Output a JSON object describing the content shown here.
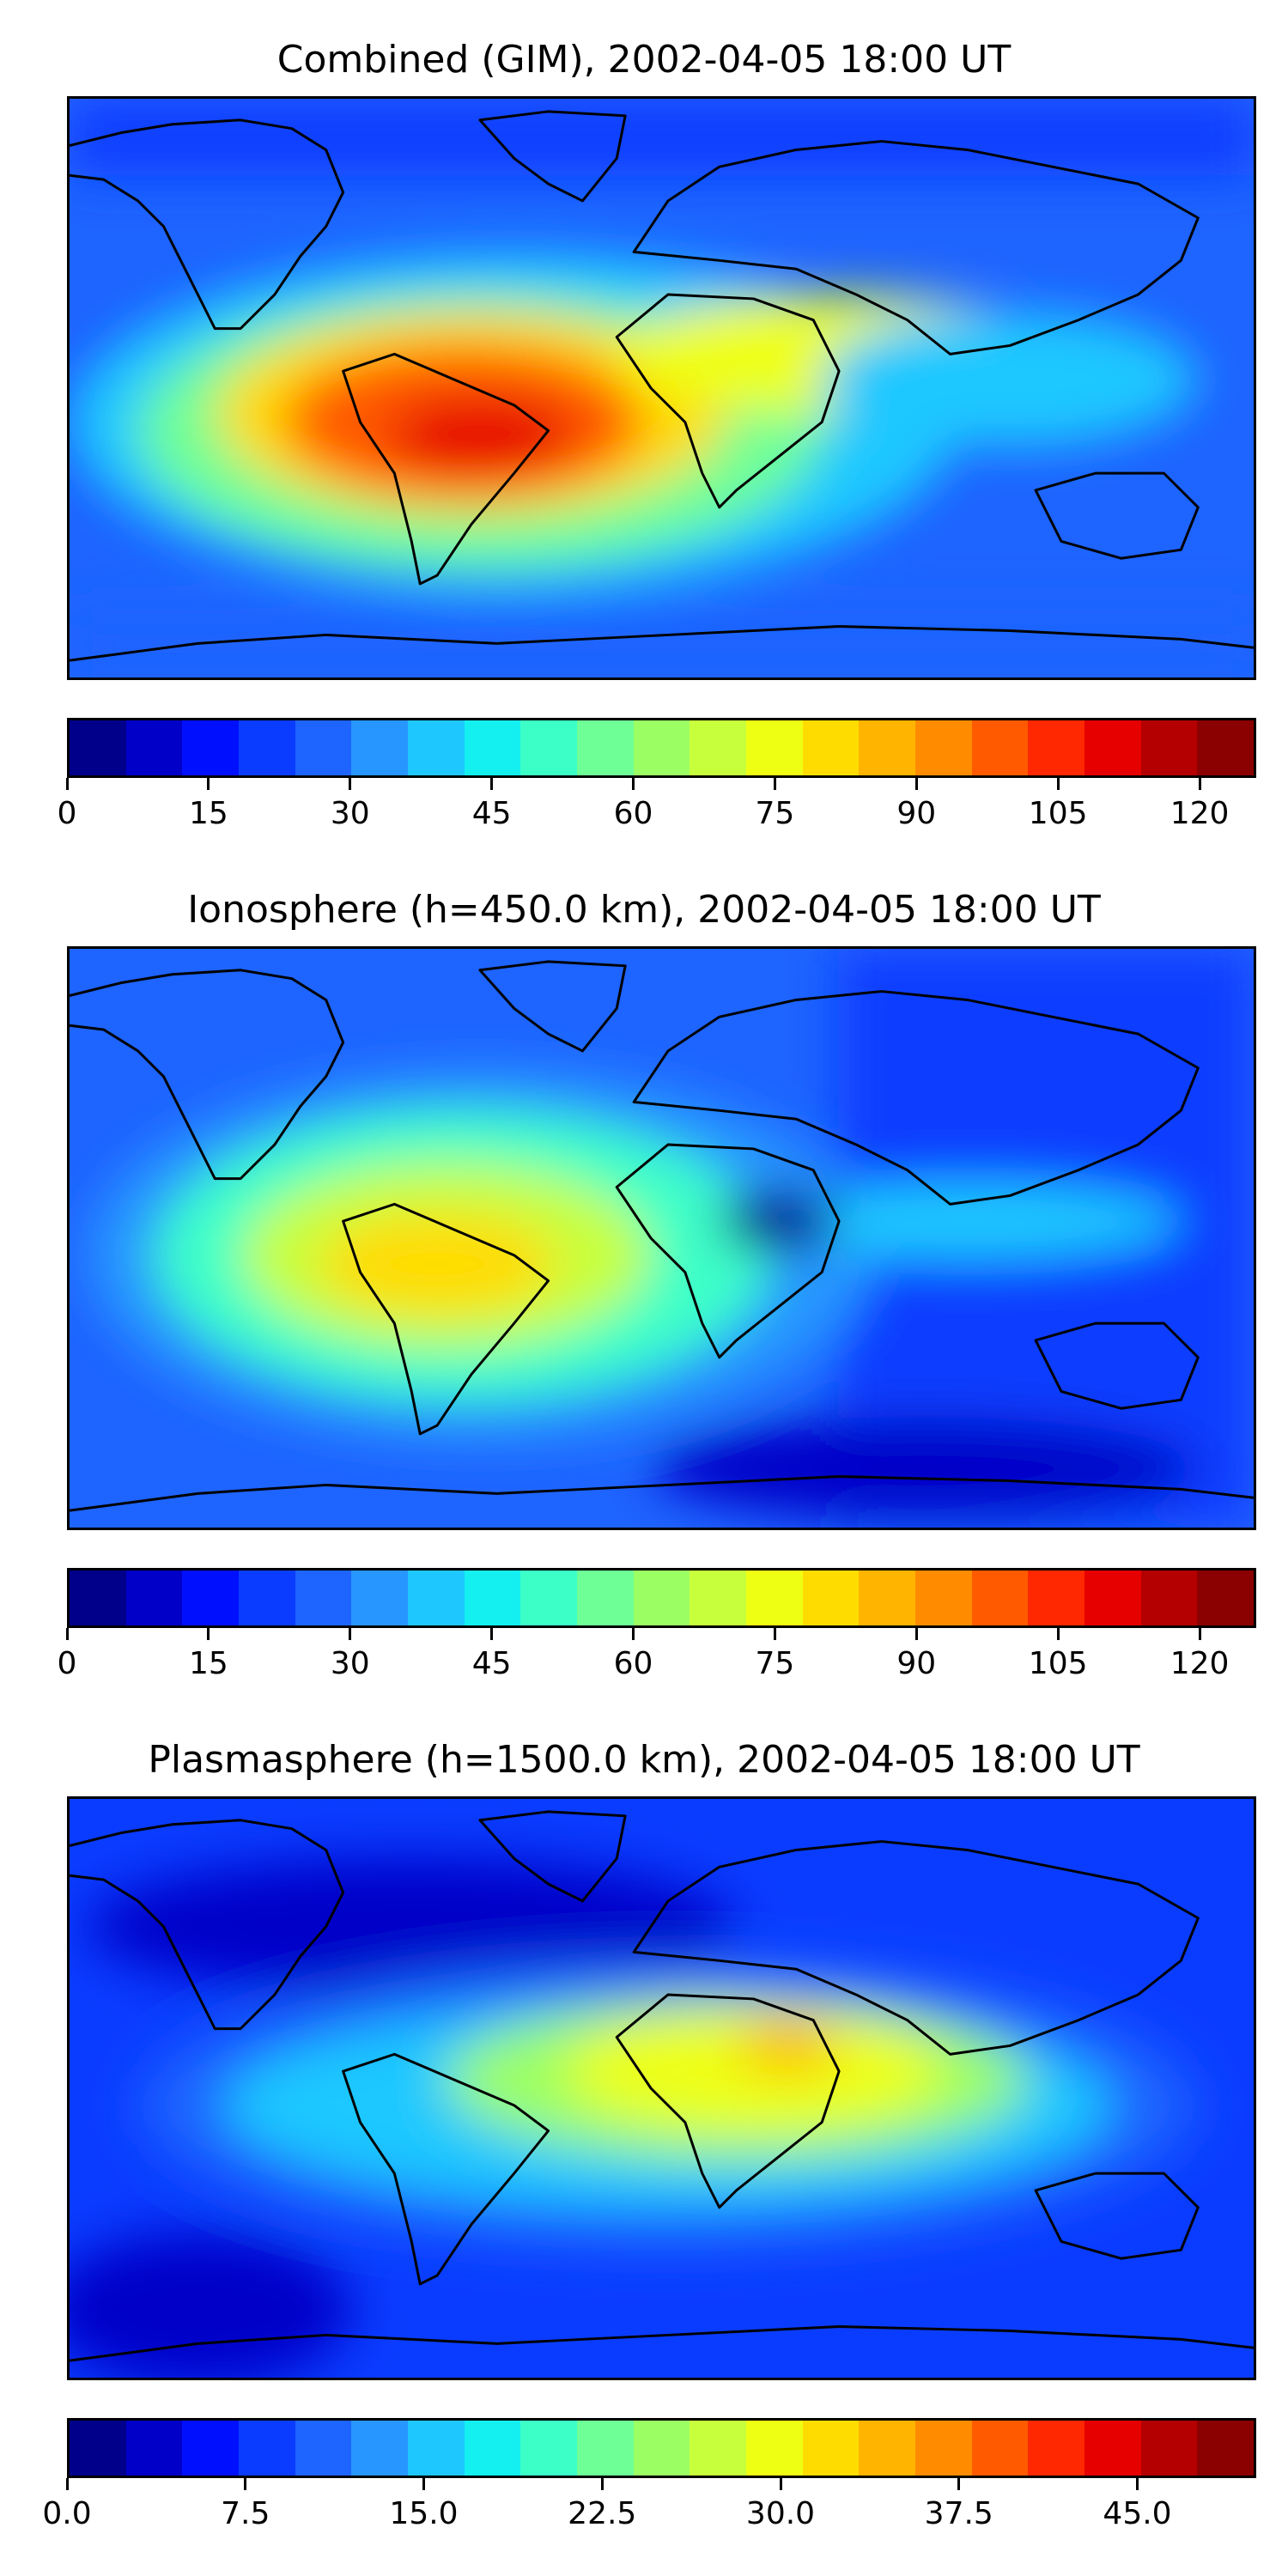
{
  "colormap": [
    "#00008b",
    "#0000c8",
    "#0010ff",
    "#0a3cff",
    "#1e64ff",
    "#2896ff",
    "#1ec8ff",
    "#14f0f0",
    "#3cffc8",
    "#6eff96",
    "#9bff64",
    "#c8ff3c",
    "#eeff14",
    "#ffdc00",
    "#ffb400",
    "#ff8c00",
    "#ff5a00",
    "#ff2800",
    "#e60000",
    "#b40000",
    "#8b0000"
  ],
  "panels": [
    {
      "title": "Combined (GIM), 2002-04-05 18:00 UT",
      "colorbar": {
        "min": 0,
        "max": 126,
        "levels": 21,
        "ticks": [
          0,
          15,
          30,
          45,
          60,
          75,
          90,
          105,
          120
        ],
        "tick_labels": [
          "0",
          "15",
          "30",
          "45",
          "60",
          "75",
          "90",
          "105",
          "120"
        ]
      },
      "features": [
        {
          "type": "band",
          "name": "equatorial-anomaly-crest",
          "color": "#6eff96"
        },
        {
          "type": "blob",
          "name": "south-america-maximum",
          "color": "#ff5a00"
        },
        {
          "type": "blob",
          "name": "south-america-core",
          "color": "#e60000"
        },
        {
          "type": "blob",
          "name": "north-africa-arabia-crest",
          "color": "#eeff14"
        }
      ]
    },
    {
      "title": "Ionosphere  (h=450.0 km), 2002-04-05 18:00 UT",
      "colorbar": {
        "min": 0,
        "max": 126,
        "levels": 21,
        "ticks": [
          0,
          15,
          30,
          45,
          60,
          75,
          90,
          105,
          120
        ],
        "tick_labels": [
          "0",
          "15",
          "30",
          "45",
          "60",
          "75",
          "90",
          "105",
          "120"
        ]
      },
      "features": [
        {
          "type": "band",
          "name": "equatorial-anomaly-crest",
          "color": "#3cffc8"
        },
        {
          "type": "blob",
          "name": "south-america-maximum",
          "color": "#ffdc00"
        },
        {
          "type": "blob",
          "name": "east-africa-minimum",
          "color": "#00008b"
        }
      ]
    },
    {
      "title": "Plasmasphere (h=1500.0 km), 2002-04-05 18:00 UT",
      "colorbar": {
        "min": 0,
        "max": 50,
        "levels": 21,
        "ticks": [
          0,
          7.5,
          15,
          22.5,
          30,
          37.5,
          45
        ],
        "tick_labels": [
          "0.0",
          "7.5",
          "15.0",
          "22.5",
          "30.0",
          "37.5",
          "45.0"
        ]
      },
      "features": [
        {
          "type": "band",
          "name": "equatorial-band",
          "color": "#1ec8ff"
        },
        {
          "type": "blob",
          "name": "africa-maximum",
          "color": "#eeff14"
        },
        {
          "type": "blob",
          "name": "east-africa-peak",
          "color": "#ffb400"
        },
        {
          "type": "blob",
          "name": "south-pacific-minimum",
          "color": "#0000c8"
        }
      ]
    }
  ]
}
